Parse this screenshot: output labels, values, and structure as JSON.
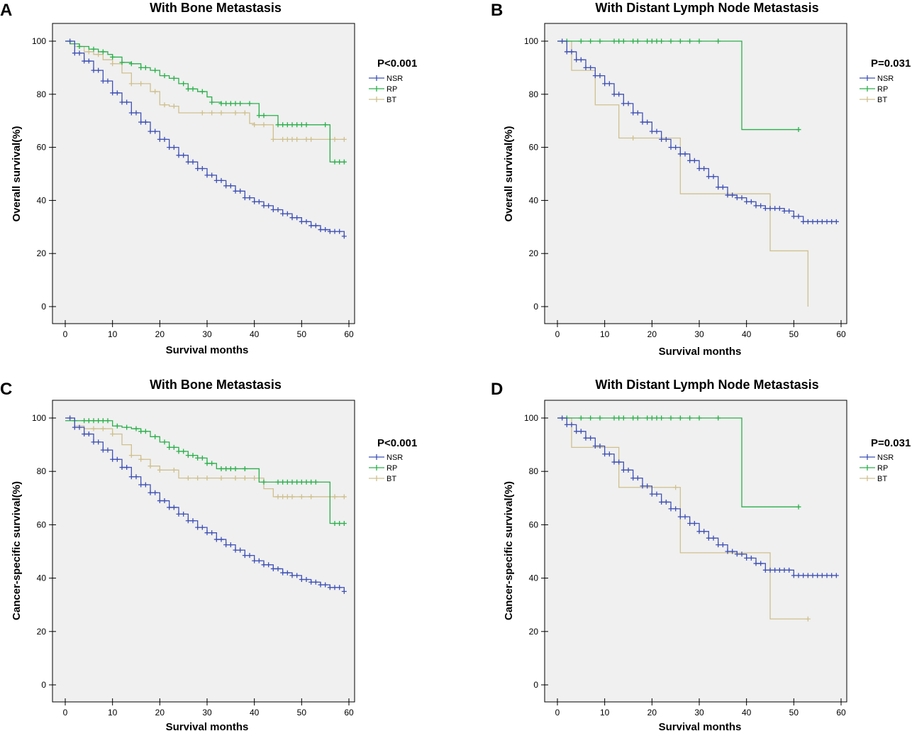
{
  "chart_data": [
    {
      "type": "line",
      "panel": "A",
      "title": "With Bone Metastasis",
      "xlabel": "Survival months",
      "ylabel": "Overall survival(%)",
      "pvalue": "P<0.001",
      "xlim": [
        0,
        60
      ],
      "ylim": [
        0,
        100
      ],
      "xticks": [
        "0",
        "10",
        "20",
        "30",
        "40",
        "50",
        "60"
      ],
      "yticks": [
        "0",
        "20",
        "40",
        "60",
        "80",
        "100"
      ],
      "legend": [
        "NSR",
        "RP",
        "BT"
      ],
      "series": [
        {
          "name": "NSR",
          "color": "#3f51b5",
          "x": [
            0,
            2,
            4,
            6,
            8,
            10,
            12,
            14,
            16,
            18,
            20,
            22,
            24,
            26,
            28,
            30,
            32,
            34,
            36,
            38,
            40,
            42,
            44,
            46,
            48,
            50,
            52,
            54,
            56,
            58,
            59
          ],
          "y": [
            100,
            95.5,
            92.5,
            89,
            85,
            80.5,
            77,
            73,
            69.5,
            66,
            63,
            60,
            57,
            54.5,
            52,
            49.5,
            47.5,
            45.5,
            43.5,
            41,
            39.5,
            38,
            36.5,
            35,
            33.5,
            32,
            30.5,
            29,
            28.3,
            28.3,
            26.5
          ],
          "censor_x": [
            1,
            2,
            3,
            4,
            5,
            6,
            7,
            8,
            9,
            10,
            11,
            12,
            13,
            14,
            15,
            16,
            17,
            18,
            19,
            20,
            21,
            22,
            23,
            24,
            25,
            26,
            27,
            28,
            29,
            30,
            31,
            32,
            33,
            34,
            35,
            36,
            37,
            38,
            39,
            40,
            41,
            42,
            43,
            44,
            45,
            46,
            47,
            48,
            49,
            50,
            51,
            52,
            53,
            54,
            55,
            56,
            57,
            58,
            59
          ]
        },
        {
          "name": "RP",
          "color": "#2ab04a",
          "x": [
            0,
            1,
            3,
            5,
            7,
            9,
            10,
            12,
            14,
            16,
            18,
            20,
            22,
            24,
            26,
            28,
            30,
            31,
            33,
            35,
            37,
            39,
            41,
            43,
            45,
            47,
            49,
            51,
            53,
            55,
            56,
            57,
            59
          ],
          "y": [
            100,
            99,
            98,
            97,
            96,
            95,
            94,
            92,
            91.5,
            90,
            89,
            87,
            86,
            84,
            82,
            81,
            79,
            77,
            76.5,
            76.5,
            76.5,
            76.5,
            72,
            72,
            68.5,
            68.5,
            68.5,
            68.5,
            68.5,
            68.5,
            54.5,
            54.5,
            54.5
          ],
          "censor_x": [
            3,
            6,
            8,
            10,
            12,
            14,
            16,
            17,
            19,
            21,
            23,
            25,
            26,
            27,
            29,
            31,
            33,
            34,
            35,
            36,
            37,
            39,
            41,
            42,
            45,
            46,
            47,
            48,
            49,
            50,
            51,
            55,
            57,
            58,
            59
          ]
        },
        {
          "name": "BT",
          "color": "#cfc08e",
          "x": [
            0,
            2,
            4,
            6,
            8,
            10,
            12,
            14,
            16,
            18,
            20,
            22,
            24,
            26,
            28,
            30,
            32,
            34,
            36,
            38,
            39,
            40,
            42,
            44,
            46,
            48,
            50,
            52,
            54,
            56,
            59
          ],
          "y": [
            100,
            98,
            96,
            95,
            93,
            91.5,
            88,
            84,
            84,
            81,
            76,
            75.5,
            73,
            73,
            73,
            73,
            73,
            73,
            73,
            73,
            69,
            68.5,
            68.5,
            63,
            63,
            63,
            63,
            63,
            63,
            63,
            63
          ],
          "censor_x": [
            5,
            7,
            10,
            14,
            16,
            19,
            21,
            23,
            29,
            31,
            33,
            36,
            38,
            40,
            42,
            44,
            46,
            47,
            48,
            49,
            51,
            52,
            57,
            59
          ]
        }
      ]
    },
    {
      "type": "line",
      "panel": "B",
      "title": "With Distant Lymph Node Metastasis",
      "xlabel": "Survival months",
      "ylabel": "Overall survival(%)",
      "pvalue": "P=0.031",
      "xlim": [
        0,
        60
      ],
      "ylim": [
        0,
        100
      ],
      "xticks": [
        "0",
        "10",
        "20",
        "30",
        "40",
        "50",
        "60"
      ],
      "yticks": [
        "0",
        "20",
        "40",
        "60",
        "80",
        "100"
      ],
      "legend": [
        "NSR",
        "RP",
        "BT"
      ],
      "series": [
        {
          "name": "NSR",
          "color": "#3f51b5",
          "x": [
            0,
            2,
            4,
            6,
            8,
            10,
            12,
            14,
            16,
            18,
            20,
            22,
            24,
            26,
            28,
            30,
            32,
            34,
            36,
            38,
            40,
            42,
            44,
            46,
            48,
            50,
            52,
            54,
            56,
            58,
            59
          ],
          "y": [
            100,
            96,
            93,
            90,
            87,
            84,
            80,
            76.5,
            73,
            69.5,
            66,
            63,
            60,
            57.5,
            55,
            52,
            49,
            45,
            42,
            41,
            39.5,
            38,
            37,
            37,
            36,
            34,
            32,
            32,
            32,
            32,
            32
          ],
          "censor_x": [
            1,
            2,
            3,
            4,
            5,
            6,
            7,
            8,
            9,
            10,
            11,
            12,
            13,
            14,
            15,
            16,
            17,
            18,
            19,
            20,
            21,
            22,
            23,
            24,
            25,
            26,
            27,
            28,
            29,
            30,
            31,
            32,
            33,
            34,
            35,
            36,
            37,
            38,
            39,
            40,
            41,
            42,
            43,
            44,
            45,
            46,
            47,
            48,
            49,
            50,
            51,
            52,
            53,
            54,
            55,
            56,
            57,
            58,
            59
          ]
        },
        {
          "name": "RP",
          "color": "#2ab04a",
          "x": [
            0,
            39,
            51
          ],
          "y": [
            100,
            66.7,
            66.7
          ],
          "censor_x": [
            2,
            5,
            7,
            9,
            12,
            13,
            14,
            16,
            17,
            19,
            20,
            21,
            22,
            24,
            26,
            28,
            30,
            34,
            51
          ]
        },
        {
          "name": "BT",
          "color": "#cfc08e",
          "x": [
            0,
            3,
            8,
            13,
            26,
            45,
            53
          ],
          "y": [
            100,
            89,
            76,
            63.5,
            42.5,
            21,
            0
          ],
          "censor_x": [
            16
          ]
        }
      ]
    },
    {
      "type": "line",
      "panel": "C",
      "title": "With Bone Metastasis",
      "xlabel": "Survival months",
      "ylabel": "Cancer-specific survival(%)",
      "pvalue": "P<0.001",
      "xlim": [
        0,
        60
      ],
      "ylim": [
        0,
        100
      ],
      "xticks": [
        "0",
        "10",
        "20",
        "30",
        "40",
        "50",
        "60"
      ],
      "yticks": [
        "0",
        "20",
        "40",
        "60",
        "80",
        "100"
      ],
      "legend": [
        "NSR",
        "RP",
        "BT"
      ],
      "series": [
        {
          "name": "NSR",
          "color": "#3f51b5",
          "x": [
            0,
            2,
            4,
            6,
            8,
            10,
            12,
            14,
            16,
            18,
            20,
            22,
            24,
            26,
            28,
            30,
            32,
            34,
            36,
            38,
            40,
            42,
            44,
            46,
            48,
            50,
            52,
            54,
            56,
            58,
            59
          ],
          "y": [
            100,
            96.5,
            94,
            91,
            88,
            84.5,
            81.5,
            78,
            75,
            72,
            69,
            66.5,
            64,
            61.5,
            59,
            57,
            54.5,
            52.5,
            50.5,
            48.5,
            46.5,
            45,
            43.5,
            42,
            41,
            39.5,
            38.5,
            37.5,
            36.5,
            36.5,
            35
          ],
          "censor_x": [
            1,
            2,
            3,
            4,
            5,
            6,
            7,
            8,
            9,
            10,
            11,
            12,
            13,
            14,
            15,
            16,
            17,
            18,
            19,
            20,
            21,
            22,
            23,
            24,
            25,
            26,
            27,
            28,
            29,
            30,
            31,
            32,
            33,
            34,
            35,
            36,
            37,
            38,
            39,
            40,
            41,
            42,
            43,
            44,
            45,
            46,
            47,
            48,
            49,
            50,
            51,
            52,
            53,
            54,
            55,
            56,
            57,
            58,
            59
          ]
        },
        {
          "name": "RP",
          "color": "#2ab04a",
          "x": [
            0,
            10,
            12,
            14,
            16,
            18,
            20,
            22,
            24,
            26,
            28,
            30,
            32,
            34,
            36,
            38,
            41,
            43,
            45,
            47,
            49,
            51,
            53,
            55,
            56,
            57,
            59
          ],
          "y": [
            99,
            97,
            96.5,
            96,
            95,
            93,
            91,
            89,
            87.5,
            86,
            85,
            83,
            81,
            81,
            81,
            81,
            76,
            76,
            76,
            76,
            76,
            76,
            76,
            76,
            60.5,
            60.5,
            60.5
          ],
          "censor_x": [
            2,
            4,
            5,
            6,
            7,
            8,
            9,
            11,
            13,
            15,
            16,
            17,
            19,
            21,
            22,
            23,
            24,
            25,
            26,
            27,
            28,
            29,
            30,
            31,
            33,
            34,
            35,
            36,
            38,
            42,
            45,
            46,
            47,
            48,
            49,
            50,
            51,
            52,
            53,
            57,
            58,
            59
          ]
        },
        {
          "name": "BT",
          "color": "#cfc08e",
          "x": [
            0,
            2,
            4,
            6,
            8,
            10,
            12,
            14,
            16,
            18,
            20,
            22,
            24,
            26,
            28,
            30,
            32,
            34,
            36,
            38,
            40,
            42,
            44,
            46,
            48,
            50,
            52,
            54,
            56,
            59
          ],
          "y": [
            100,
            97,
            96,
            96,
            96,
            94,
            90,
            86,
            84.5,
            82,
            80.5,
            80.5,
            77.5,
            77.5,
            77.5,
            77.5,
            77.5,
            77.5,
            77.5,
            77.5,
            77.5,
            73.5,
            70.5,
            70.5,
            70.5,
            70.5,
            70.5,
            70.5,
            70.5,
            70.5
          ],
          "censor_x": [
            6,
            8,
            10,
            14,
            16,
            18,
            20,
            23,
            26,
            28,
            30,
            33,
            36,
            38,
            40,
            45,
            46,
            47,
            48,
            50,
            52,
            57,
            59
          ]
        }
      ]
    },
    {
      "type": "line",
      "panel": "D",
      "title": "With Distant Lymph Node Metastasis",
      "xlabel": "Survival months",
      "ylabel": "Cancer-specific survival(%)",
      "pvalue": "P=0.031",
      "xlim": [
        0,
        60
      ],
      "ylim": [
        0,
        100
      ],
      "xticks": [
        "0",
        "10",
        "20",
        "30",
        "40",
        "50",
        "60"
      ],
      "yticks": [
        "0",
        "20",
        "40",
        "60",
        "80",
        "100"
      ],
      "legend": [
        "NSR",
        "RP",
        "BT"
      ],
      "series": [
        {
          "name": "NSR",
          "color": "#3f51b5",
          "x": [
            0,
            2,
            4,
            6,
            8,
            10,
            12,
            14,
            16,
            18,
            20,
            22,
            24,
            26,
            28,
            30,
            32,
            34,
            36,
            38,
            40,
            42,
            44,
            46,
            48,
            50,
            52,
            54,
            56,
            58,
            59
          ],
          "y": [
            100,
            97.5,
            95,
            92.5,
            89.5,
            86.5,
            83.5,
            80.5,
            77.5,
            74.5,
            71.5,
            68.5,
            66,
            63,
            60.5,
            57.5,
            55,
            52.5,
            50,
            49,
            47.5,
            45.5,
            43,
            43,
            43,
            41,
            41,
            41,
            41,
            41,
            41
          ],
          "censor_x": [
            1,
            2,
            3,
            4,
            5,
            6,
            7,
            8,
            9,
            10,
            11,
            12,
            13,
            14,
            15,
            16,
            17,
            18,
            19,
            20,
            21,
            22,
            23,
            24,
            25,
            26,
            27,
            28,
            29,
            30,
            31,
            32,
            33,
            34,
            35,
            36,
            37,
            38,
            39,
            40,
            41,
            42,
            43,
            44,
            45,
            46,
            47,
            48,
            49,
            50,
            51,
            52,
            53,
            54,
            55,
            56,
            57,
            58,
            59
          ]
        },
        {
          "name": "RP",
          "color": "#2ab04a",
          "x": [
            0,
            39,
            51
          ],
          "y": [
            100,
            66.7,
            66.7
          ],
          "censor_x": [
            2,
            5,
            7,
            9,
            12,
            13,
            14,
            16,
            17,
            19,
            20,
            21,
            22,
            24,
            26,
            28,
            30,
            34,
            51
          ]
        },
        {
          "name": "BT",
          "color": "#cfc08e",
          "x": [
            0,
            3,
            10,
            13,
            26,
            45,
            53
          ],
          "y": [
            100,
            89,
            89,
            74,
            49.5,
            24.7,
            24.7
          ],
          "censor_x": [
            25,
            53
          ]
        }
      ]
    }
  ]
}
